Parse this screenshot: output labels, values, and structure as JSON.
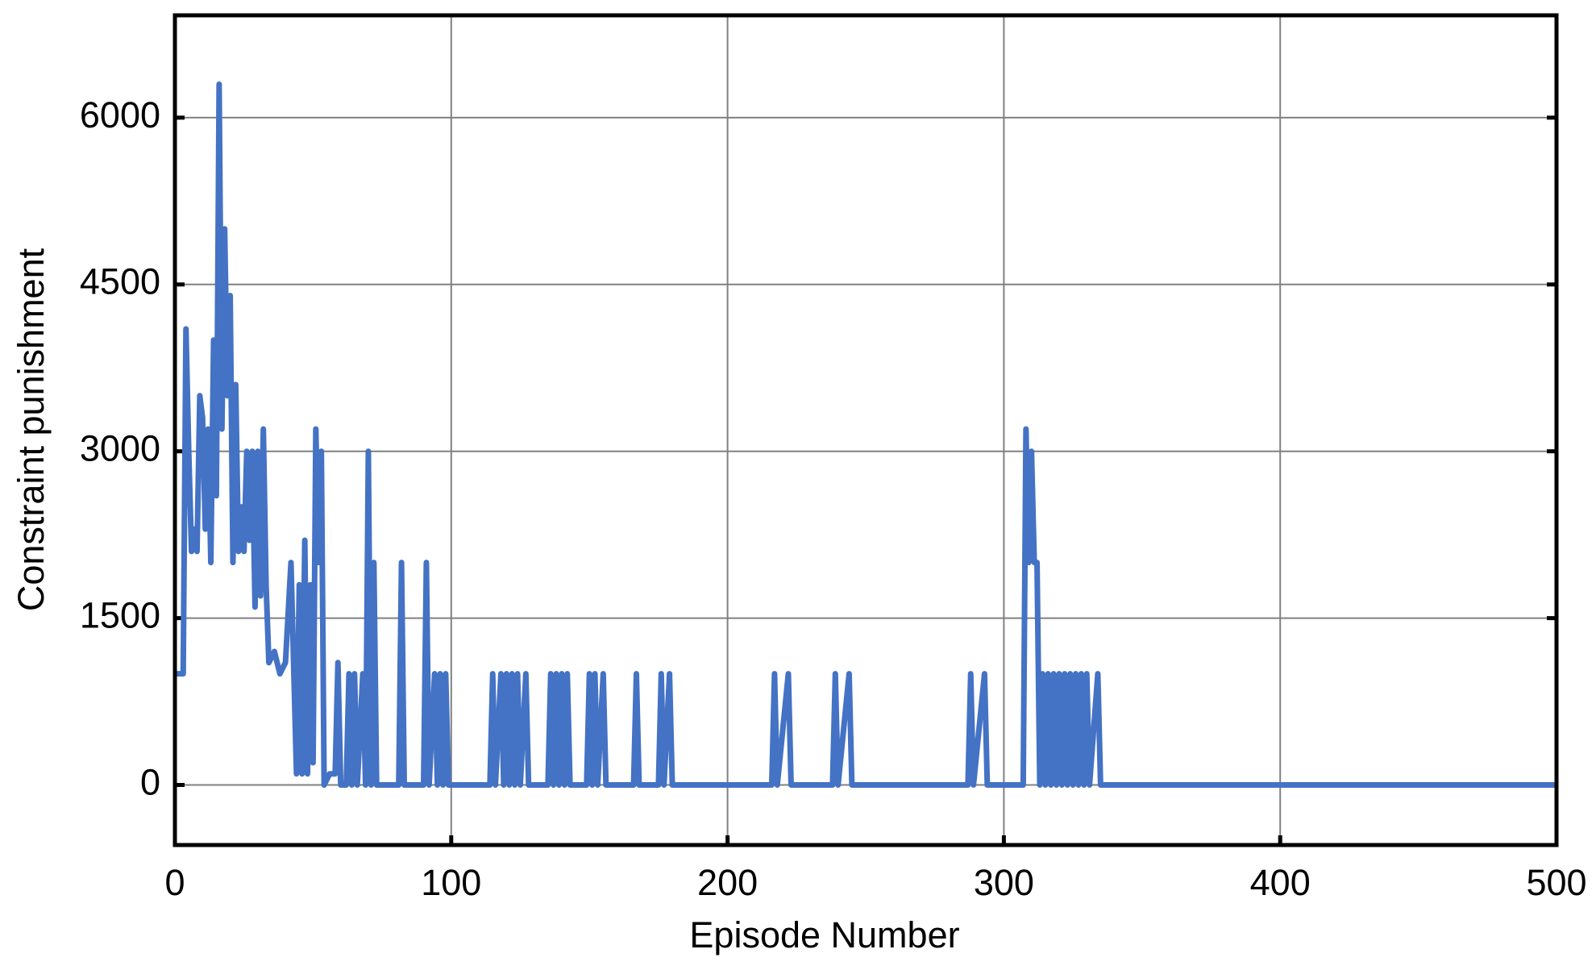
{
  "chart_data": {
    "type": "line",
    "xlabel": "Episode Number",
    "ylabel": "Constraint punishment",
    "x": [
      0,
      3,
      4,
      5,
      6,
      7,
      8,
      9,
      10,
      11,
      12,
      13,
      14,
      15,
      16,
      17,
      18,
      19,
      20,
      21,
      22,
      23,
      24,
      25,
      26,
      27,
      28,
      29,
      30,
      31,
      32,
      33,
      34,
      36,
      38,
      40,
      42,
      44,
      45,
      46,
      47,
      48,
      49,
      50,
      51,
      52,
      53,
      54,
      56,
      58,
      59,
      60,
      62,
      63,
      64,
      65,
      66,
      68,
      69,
      70,
      71,
      72,
      73,
      81,
      82,
      83,
      90,
      91,
      92,
      94,
      95,
      96,
      97,
      98,
      99,
      114,
      115,
      116,
      118,
      119,
      120,
      121,
      122,
      123,
      124,
      125,
      127,
      128,
      135,
      136,
      137,
      138,
      139,
      140,
      141,
      142,
      143,
      149,
      150,
      151,
      152,
      153,
      155,
      156,
      166,
      167,
      168,
      175,
      176,
      177,
      179,
      180,
      216,
      217,
      218,
      222,
      223,
      238,
      239,
      240,
      244,
      245,
      287,
      288,
      289,
      293,
      294,
      307,
      308,
      309,
      310,
      311,
      312,
      313,
      314,
      315,
      316,
      317,
      318,
      319,
      320,
      321,
      322,
      323,
      324,
      325,
      326,
      327,
      328,
      329,
      330,
      331,
      334,
      335,
      500
    ],
    "series": [
      {
        "color": "#4472c4",
        "values": [
          1000,
          1000,
          4100,
          3000,
          2100,
          2300,
          2100,
          3500,
          3300,
          2300,
          3200,
          2000,
          4000,
          2600,
          6300,
          3200,
          5000,
          3500,
          4400,
          2000,
          3600,
          2100,
          2500,
          2100,
          3000,
          2200,
          3000,
          1600,
          3000,
          1700,
          3200,
          1800,
          1100,
          1200,
          1000,
          1100,
          2000,
          100,
          1800,
          100,
          2200,
          100,
          1800,
          200,
          3200,
          2000,
          3000,
          0,
          100,
          100,
          1100,
          0,
          0,
          1000,
          0,
          1000,
          0,
          1000,
          0,
          3000,
          0,
          2000,
          0,
          0,
          2000,
          0,
          0,
          2000,
          0,
          1000,
          0,
          1000,
          0,
          1000,
          0,
          0,
          1000,
          0,
          1000,
          0,
          1000,
          0,
          1000,
          0,
          1000,
          0,
          1000,
          0,
          0,
          1000,
          0,
          1000,
          0,
          1000,
          0,
          1000,
          0,
          0,
          1000,
          0,
          1000,
          0,
          1000,
          0,
          0,
          1000,
          0,
          0,
          1000,
          0,
          1000,
          0,
          0,
          1000,
          0,
          1000,
          0,
          0,
          1000,
          0,
          1000,
          0,
          0,
          1000,
          0,
          1000,
          0,
          0,
          3200,
          2000,
          3000,
          2000,
          2000,
          0,
          1000,
          0,
          1000,
          0,
          1000,
          0,
          1000,
          0,
          1000,
          0,
          1000,
          0,
          1000,
          0,
          1000,
          0,
          1000,
          0,
          1000,
          0,
          0
        ]
      }
    ],
    "xlim": [
      0,
      500
    ],
    "xticks": [
      0,
      100,
      200,
      300,
      400,
      500
    ],
    "ylim": [
      -540,
      6920
    ],
    "yticks": [
      0,
      1500,
      3000,
      4500,
      6000
    ],
    "grid": true
  }
}
